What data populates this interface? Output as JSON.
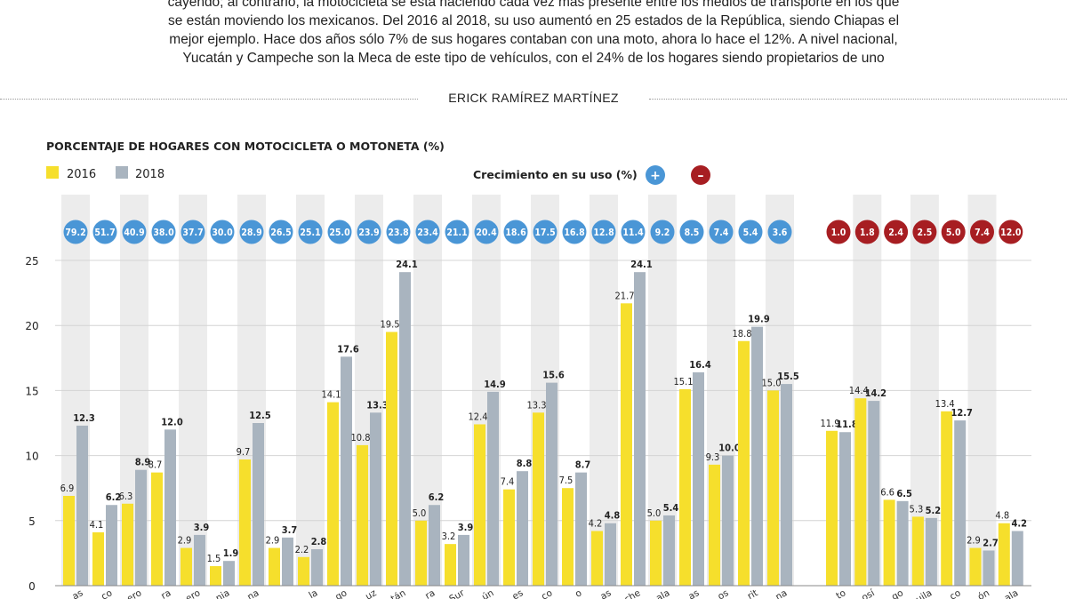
{
  "intro": {
    "lines": [
      "cayendo; al contrario, la motocicleta se está haciendo cada vez más presente entre los medios de transporte en los que",
      "se están moviendo los mexicanos. Del 2016 al 2018, su uso aumentó en 25 estados de la República, siendo Chiapas el",
      "mejor ejemplo. Hace dos años sólo 7% de sus hogares contaban con una moto, ahora lo hace el 12%.  A nivel nacional,",
      "Yucatán y Campeche son la Meca de este tipo de vehículos, con el 24% de los hogares siendo propietarios de uno"
    ]
  },
  "byline": "ERICK RAMÍREZ MARTÍNEZ",
  "colors": {
    "y2016": "#f6df2c",
    "y2018": "#a9b4bf",
    "positive": "#4a96d6",
    "negative": "#a71e22",
    "stripe": "#ececec"
  },
  "chart_data": {
    "type": "bar",
    "title": "PORCENTAJE DE HOGARES CON MOTOCICLETA O MOTONETA (%)",
    "legend": {
      "series": [
        "2016",
        "2018"
      ],
      "growth_label": "Crecimiento en su uso (%)",
      "plus": "+",
      "minus": "–"
    },
    "ylim": [
      0,
      25
    ],
    "yticks": [
      "0",
      "5",
      "10",
      "15",
      "20",
      "25"
    ],
    "yticks_values": [
      0,
      5,
      10,
      15,
      20,
      25
    ],
    "categories": [
      "as",
      "co",
      "ero",
      "ra",
      "ero",
      "nia",
      "na",
      "",
      "la",
      "go",
      "uz",
      "tán",
      "ra",
      "Sur",
      "ún",
      "es",
      "co",
      "o",
      "as",
      "che",
      "ala",
      "as",
      "os",
      "rit",
      "na",
      "to",
      "osí",
      "go",
      "uila",
      "co",
      "ón",
      "ala"
    ],
    "series": [
      {
        "name": "2016",
        "values": [
          6.9,
          4.1,
          6.3,
          8.7,
          2.9,
          1.5,
          9.7,
          2.9,
          2.2,
          14.1,
          10.8,
          19.5,
          5.0,
          3.2,
          12.4,
          7.4,
          13.3,
          7.5,
          4.2,
          21.7,
          5.0,
          15.1,
          9.3,
          18.8,
          15.0,
          11.9,
          14.4,
          6.6,
          5.3,
          13.4,
          2.9,
          4.8
        ]
      },
      {
        "name": "2018",
        "values": [
          12.3,
          6.2,
          8.9,
          12.0,
          3.9,
          1.9,
          12.5,
          3.7,
          2.8,
          17.6,
          13.3,
          24.1,
          6.2,
          3.9,
          14.9,
          8.8,
          15.6,
          8.7,
          4.8,
          24.1,
          5.4,
          16.4,
          10.0,
          19.9,
          15.5,
          11.8,
          14.2,
          6.5,
          5.2,
          12.7,
          2.7,
          4.2
        ]
      }
    ],
    "growth": [
      "79.2",
      "51.7",
      "40.9",
      "38.0",
      "37.7",
      "30.0",
      "28.9",
      "26.5",
      "25.1",
      "25.0",
      "23.9",
      "23.8",
      "23.4",
      "21.1",
      "20.4",
      "18.6",
      "17.5",
      "16.8",
      "12.8",
      "11.4",
      "9.2",
      "8.5",
      "7.4",
      "5.4",
      "3.6",
      "1.0",
      "1.8",
      "2.4",
      "2.5",
      "5.0",
      "7.4",
      "12.0"
    ],
    "growth_sign": [
      "+",
      "+",
      "+",
      "+",
      "+",
      "+",
      "+",
      "+",
      "+",
      "+",
      "+",
      "+",
      "+",
      "+",
      "+",
      "+",
      "+",
      "+",
      "+",
      "+",
      "+",
      "+",
      "+",
      "+",
      "+",
      "-",
      "-",
      "-",
      "-",
      "-",
      "-",
      "-"
    ]
  }
}
